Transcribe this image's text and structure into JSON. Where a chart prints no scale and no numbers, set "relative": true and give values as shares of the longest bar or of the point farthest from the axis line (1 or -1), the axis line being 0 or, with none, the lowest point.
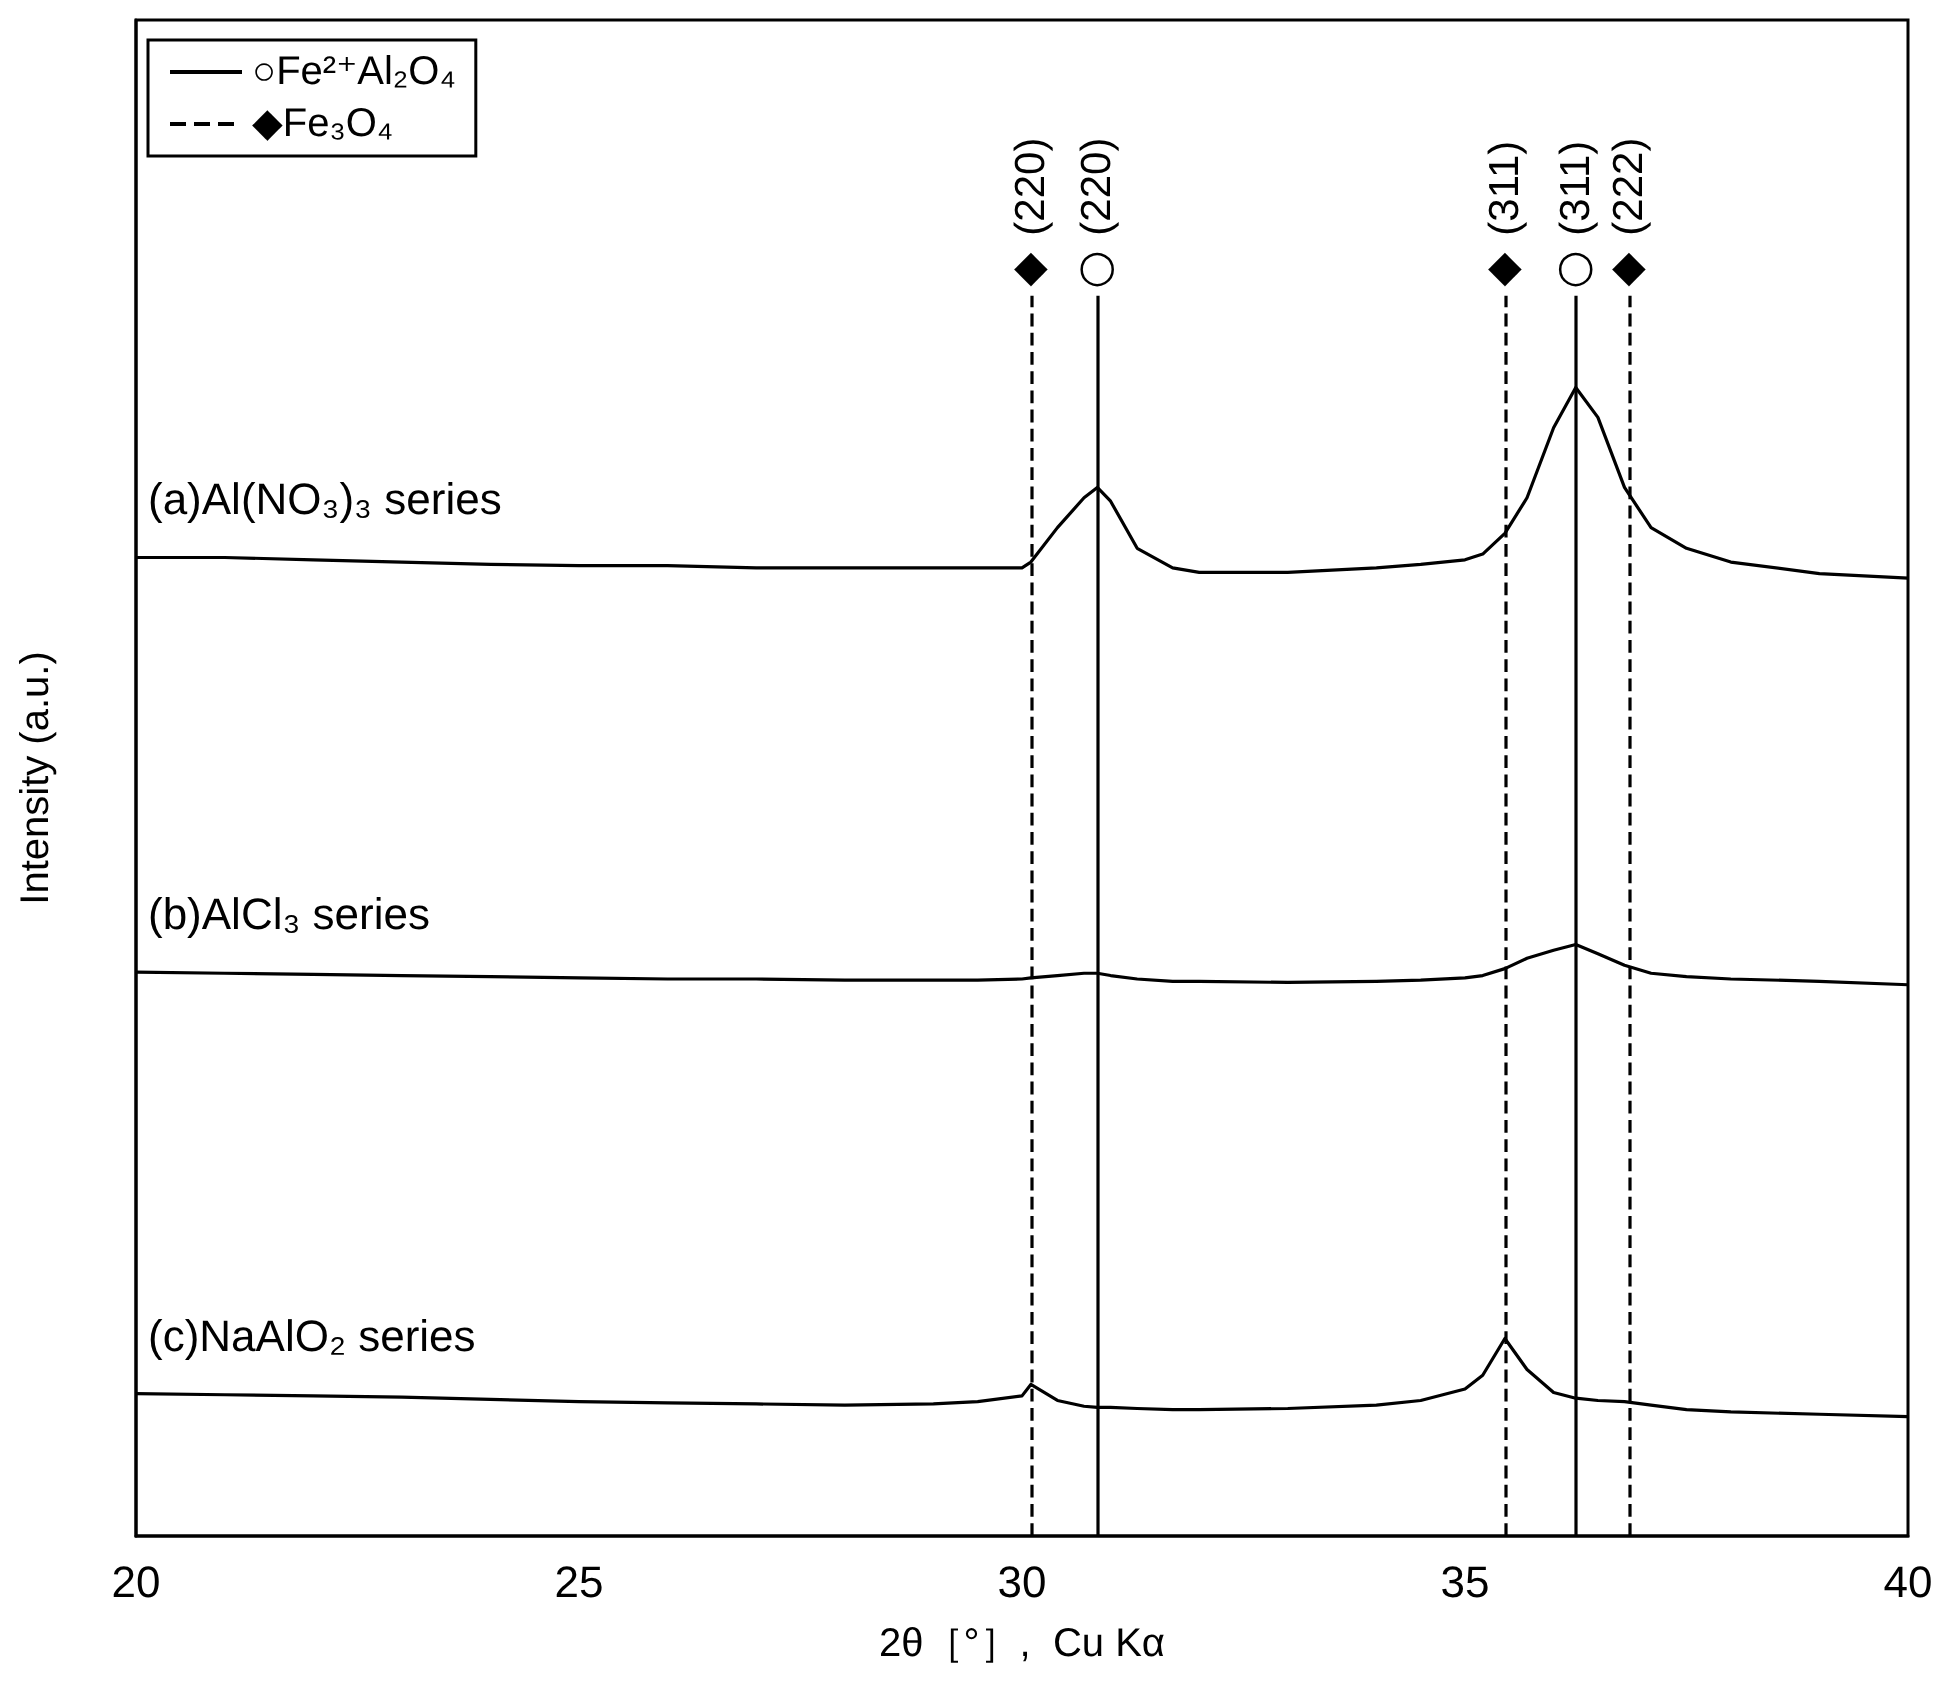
{
  "chart_data": {
    "type": "line",
    "relative": true,
    "xlabel": "2θ［°］,  Cu Kα",
    "ylabel": "Intensity (a.u.)",
    "x": [
      20,
      21,
      22,
      23,
      24,
      25,
      26,
      27,
      28,
      29,
      29.5,
      30,
      30.1,
      30.4,
      30.7,
      30.85,
      31.0,
      31.3,
      31.7,
      32,
      33,
      34,
      34.5,
      35,
      35.2,
      35.45,
      35.7,
      36.0,
      36.25,
      36.5,
      36.8,
      37.1,
      37.5,
      38,
      39,
      40
    ],
    "xlim": [
      20,
      40
    ],
    "xticks": [
      20,
      25,
      30,
      35,
      40
    ],
    "series": [
      {
        "name": "(a)Al(NO₃)₃ series",
        "color": "#000000",
        "values": [
          0.852,
          0.852,
          0.85,
          0.848,
          0.846,
          0.845,
          0.845,
          0.843,
          0.843,
          0.843,
          0.843,
          0.843,
          0.848,
          0.878,
          0.904,
          0.913,
          0.901,
          0.86,
          0.843,
          0.839,
          0.839,
          0.843,
          0.846,
          0.85,
          0.855,
          0.873,
          0.904,
          0.965,
          1.0,
          0.974,
          0.913,
          0.878,
          0.86,
          0.848,
          0.838,
          0.834
        ]
      },
      {
        "name": "(b)AlCl₃ series",
        "color": "#000000",
        "values": [
          0.491,
          0.49,
          0.489,
          0.488,
          0.487,
          0.486,
          0.485,
          0.485,
          0.484,
          0.484,
          0.484,
          0.485,
          0.486,
          0.488,
          0.49,
          0.49,
          0.488,
          0.485,
          0.483,
          0.483,
          0.482,
          0.483,
          0.484,
          0.486,
          0.488,
          0.494,
          0.503,
          0.51,
          0.515,
          0.507,
          0.497,
          0.49,
          0.487,
          0.485,
          0.483,
          0.48
        ]
      },
      {
        "name": "(c)NaAlO₂ series",
        "color": "#000000",
        "values": [
          0.124,
          0.123,
          0.122,
          0.121,
          0.119,
          0.117,
          0.116,
          0.115,
          0.114,
          0.115,
          0.117,
          0.122,
          0.132,
          0.118,
          0.113,
          0.112,
          0.112,
          0.111,
          0.11,
          0.11,
          0.111,
          0.114,
          0.118,
          0.128,
          0.14,
          0.172,
          0.145,
          0.125,
          0.12,
          0.118,
          0.117,
          0.114,
          0.11,
          0.108,
          0.106,
          0.104
        ]
      }
    ],
    "ref_lines": [
      {
        "axis": "x",
        "value": 30.85,
        "label": "○(220)",
        "line_style": "solid",
        "color": "#000000"
      },
      {
        "axis": "x",
        "value": 36.25,
        "label": "○(311)",
        "line_style": "solid",
        "color": "#000000"
      },
      {
        "axis": "x",
        "value": 30.1,
        "label": "◆(220)",
        "line_style": "dashed",
        "color": "#000000"
      },
      {
        "axis": "x",
        "value": 35.45,
        "label": "◆(311)",
        "line_style": "dashed",
        "color": "#000000"
      },
      {
        "axis": "x",
        "value": 36.85,
        "label": "◆(222)",
        "line_style": "dashed",
        "color": "#000000"
      }
    ],
    "annotations": [
      "○Fe²⁺Al₂O₄",
      "◆Fe₃O₄"
    ],
    "legend": "top left",
    "grid": false,
    "marker": "none",
    "line_style": "solid",
    "tick_labels": "x"
  }
}
